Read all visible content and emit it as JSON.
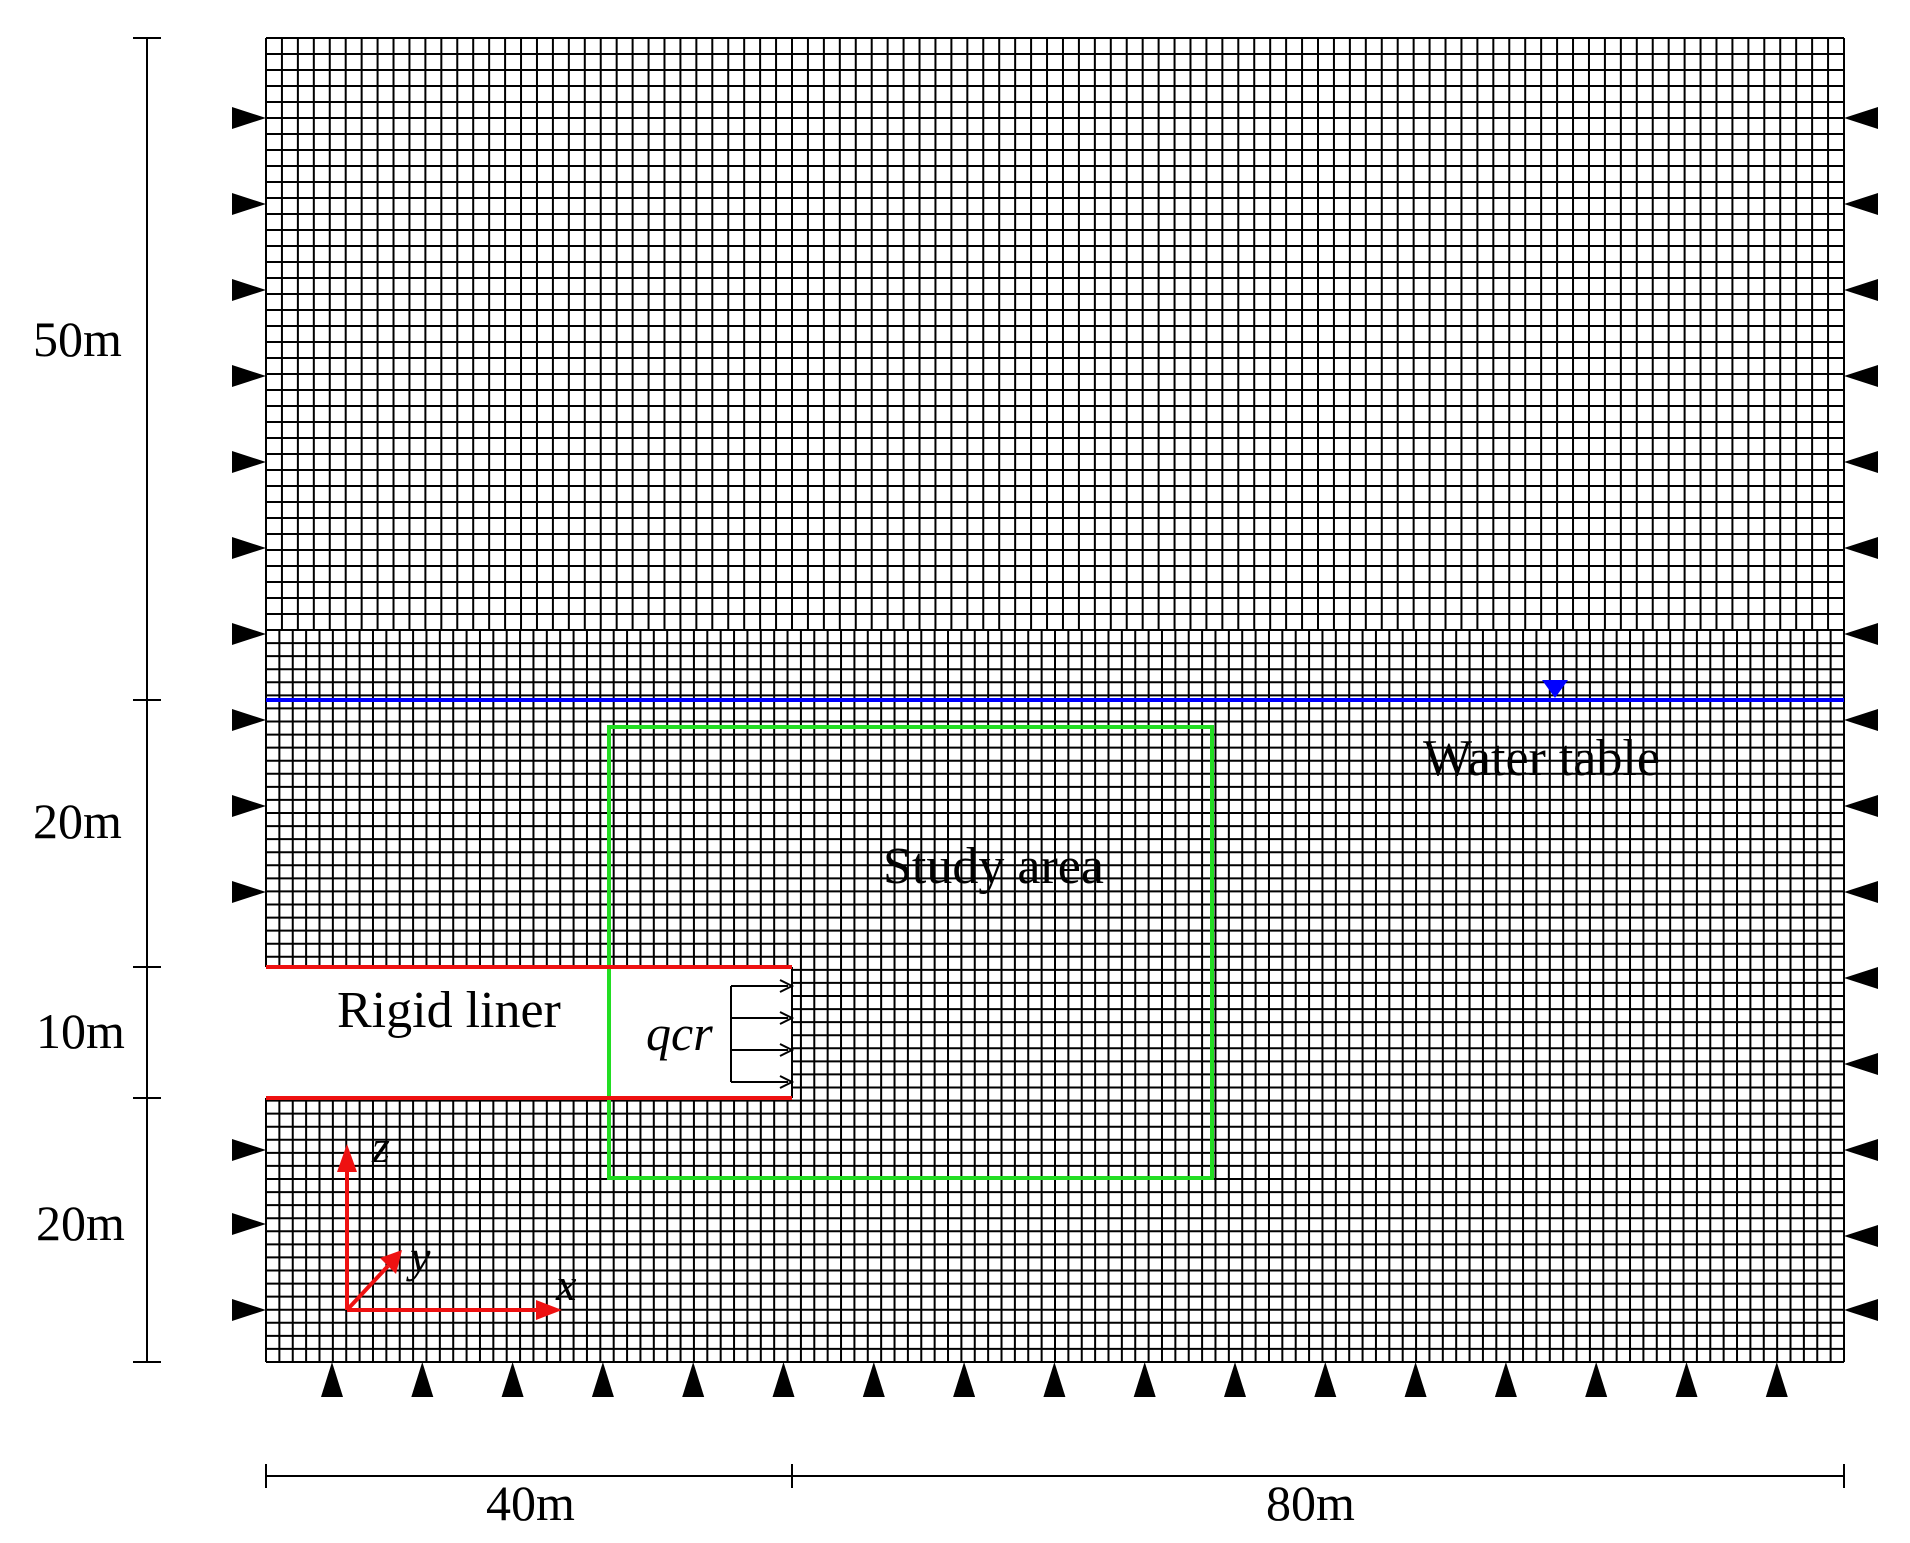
{
  "diagram": {
    "labels": {
      "water_table": "Water table",
      "study_area": "Study area",
      "rigid_liner": "Rigid liner",
      "load": "qcr"
    },
    "axes": {
      "x": "x",
      "y": "y",
      "z": "z"
    },
    "dimensions": {
      "vertical": [
        "50m",
        "20m",
        "10m",
        "20m"
      ],
      "horizontal": [
        "40m",
        "80m"
      ]
    },
    "colors": {
      "mesh": "#000000",
      "water_table": "#0000ff",
      "study_area": "#22dd22",
      "rigid_liner": "#ee1111",
      "axes": "#ee1111"
    }
  }
}
